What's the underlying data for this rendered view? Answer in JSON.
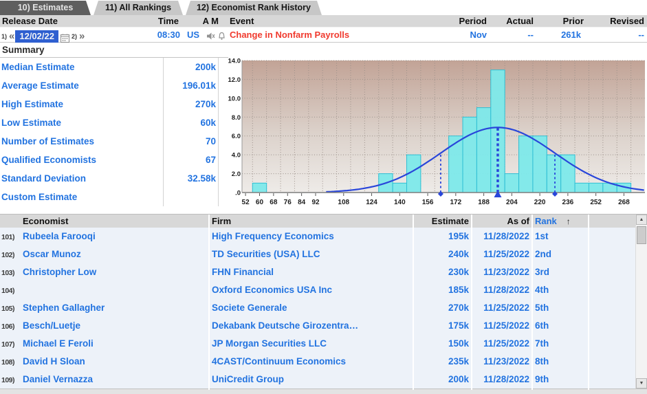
{
  "window": {
    "tabs": [
      {
        "label": "10) Estimates",
        "active": true
      },
      {
        "label": "11) All Rankings",
        "active": false
      },
      {
        "label": "12) Economist Rank History",
        "active": false
      }
    ]
  },
  "release_bar": {
    "headers": {
      "release_date": "Release Date",
      "time": "Time",
      "am": "A M",
      "event": "Event",
      "period": "Period",
      "actual": "Actual",
      "prior": "Prior",
      "revised": "Revised"
    },
    "nav": {
      "prev_key": "1)",
      "prev_arrows": "«",
      "date": "12/02/22",
      "next_key": "2)",
      "next_arrows": "»"
    },
    "values": {
      "time": "08:30",
      "country": "US",
      "event": "Change in Nonfarm Payrolls",
      "period": "Nov",
      "actual": "--",
      "prior": "261k",
      "revised": "--"
    }
  },
  "summary": {
    "title": "Summary",
    "rows": [
      {
        "label": "Median Estimate",
        "value": "200k"
      },
      {
        "label": "Average Estimate",
        "value": "196.01k"
      },
      {
        "label": "High Estimate",
        "value": "270k"
      },
      {
        "label": "Low Estimate",
        "value": "60k"
      },
      {
        "label": "Number of Estimates",
        "value": "70"
      },
      {
        "label": "Qualified Economists",
        "value": "67"
      },
      {
        "label": "Standard Deviation",
        "value": "32.58k"
      },
      {
        "label": "Custom Estimate",
        "value": ""
      }
    ]
  },
  "chart_data": {
    "type": "bar",
    "subtype": "histogram-with-normal-curve",
    "title": "Distribution of economist estimates (k)",
    "bin_width": 8,
    "bins": [
      {
        "center": 60,
        "count": 1
      },
      {
        "center": 132,
        "count": 2
      },
      {
        "center": 140,
        "count": 1
      },
      {
        "center": 148,
        "count": 4
      },
      {
        "center": 172,
        "count": 6
      },
      {
        "center": 180,
        "count": 8
      },
      {
        "center": 188,
        "count": 9
      },
      {
        "center": 196,
        "count": 13
      },
      {
        "center": 204,
        "count": 2
      },
      {
        "center": 212,
        "count": 6
      },
      {
        "center": 220,
        "count": 6
      },
      {
        "center": 228,
        "count": 4
      },
      {
        "center": 236,
        "count": 4
      },
      {
        "center": 244,
        "count": 1
      },
      {
        "center": 252,
        "count": 1
      },
      {
        "center": 260,
        "count": 1
      },
      {
        "center": 268,
        "count": 1
      }
    ],
    "normal_curve": {
      "mean": 196,
      "sigma": 32.58,
      "peak": 6.9,
      "from": 98,
      "to": 280
    },
    "mean_marker": 196,
    "sigma_markers": [
      163.4,
      228.6
    ],
    "x_ticks": [
      52,
      60,
      68,
      76,
      84,
      92,
      108,
      124,
      140,
      156,
      172,
      188,
      204,
      220,
      236,
      252,
      268
    ],
    "y_ticks": [
      {
        "value": 14,
        "label": "14.0"
      },
      {
        "value": 12,
        "label": "12.0"
      },
      {
        "value": 10,
        "label": "10.0"
      },
      {
        "value": 8,
        "label": "8.0"
      },
      {
        "value": 6,
        "label": "6.0"
      },
      {
        "value": 4,
        "label": "4.0"
      },
      {
        "value": 2,
        "label": "2.0"
      },
      {
        "value": 0,
        "label": ".0"
      }
    ],
    "xlim": [
      50,
      280
    ],
    "ylim": [
      0,
      14
    ],
    "grid": "dotted"
  },
  "table": {
    "headers": {
      "economist": "Economist",
      "firm": "Firm",
      "estimate": "Estimate",
      "as_of": "As of",
      "rank": "Rank"
    },
    "sort_indicator": "↑",
    "rows": [
      {
        "num": "101)",
        "economist": "Rubeela Farooqi",
        "firm": "High Frequency Economics",
        "estimate": "195k",
        "as_of": "11/28/2022",
        "rank": "1st"
      },
      {
        "num": "102)",
        "economist": "Oscar Munoz",
        "firm": "TD Securities (USA) LLC",
        "estimate": "240k",
        "as_of": "11/25/2022",
        "rank": "2nd"
      },
      {
        "num": "103)",
        "economist": "Christopher Low",
        "firm": "FHN Financial",
        "estimate": "230k",
        "as_of": "11/23/2022",
        "rank": "3rd"
      },
      {
        "num": "104)",
        "economist": "",
        "firm": "Oxford Economics USA Inc",
        "estimate": "185k",
        "as_of": "11/28/2022",
        "rank": "4th"
      },
      {
        "num": "105)",
        "economist": "Stephen Gallagher",
        "firm": "Societe Generale",
        "estimate": "270k",
        "as_of": "11/25/2022",
        "rank": "5th"
      },
      {
        "num": "106)",
        "economist": "Besch/Luetje",
        "firm": "Dekabank Deutsche Girozentra…",
        "estimate": "175k",
        "as_of": "11/25/2022",
        "rank": "6th"
      },
      {
        "num": "107)",
        "economist": "Michael E Feroli",
        "firm": "JP Morgan Securities LLC",
        "estimate": "150k",
        "as_of": "11/25/2022",
        "rank": "7th"
      },
      {
        "num": "108)",
        "economist": "David H Sloan",
        "firm": "4CAST/Continuum Economics",
        "estimate": "235k",
        "as_of": "11/23/2022",
        "rank": "8th"
      },
      {
        "num": "109)",
        "economist": "Daniel Vernazza",
        "firm": "UniCredit Group",
        "estimate": "200k",
        "as_of": "11/28/2022",
        "rank": "9th"
      }
    ]
  },
  "colors": {
    "link_blue": "#2273e0",
    "event_red": "#f03a2e",
    "date_bg": "#2e5fd0",
    "bar_fill": "#7de9ea",
    "bar_stroke": "#2fbfd4",
    "curve_blue": "#2946da",
    "header_gray": "#d8d8d8",
    "row_bg": "#edf2f9",
    "plot_top": "#c2a396",
    "plot_bottom": "#eeebe8"
  }
}
